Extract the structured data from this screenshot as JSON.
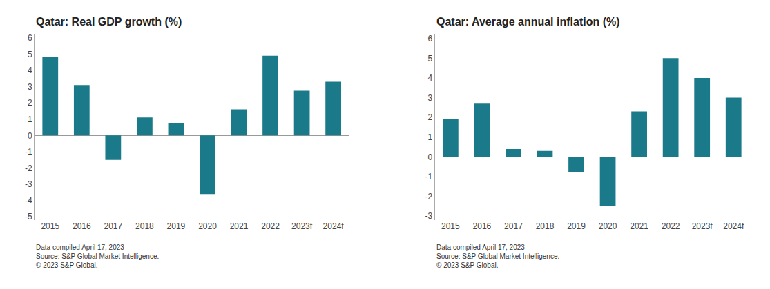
{
  "chart_data": [
    {
      "type": "bar",
      "title": "Qatar: Real GDP growth (%)",
      "categories": [
        "2015",
        "2016",
        "2017",
        "2018",
        "2019",
        "2020",
        "2021",
        "2022",
        "2023f",
        "2024f"
      ],
      "values": [
        4.8,
        3.1,
        -1.5,
        1.1,
        0.75,
        -3.6,
        1.6,
        4.9,
        2.75,
        3.3
      ],
      "color": "#1a7a8a",
      "ylim": [
        -5.2,
        6.2
      ],
      "yticks": [
        -5,
        -4,
        -3,
        -2,
        -1,
        0,
        1,
        2,
        3,
        4,
        5,
        6
      ],
      "grid": false,
      "annotations": [
        "Data compiled April 17, 2023",
        "Source: S&P Global Market Intelligence.",
        "© 2023 S&P Global."
      ]
    },
    {
      "type": "bar",
      "title": "Qatar: Average annual inflation (%)",
      "categories": [
        "2015",
        "2016",
        "2017",
        "2018",
        "2019",
        "2020",
        "2021",
        "2022",
        "2023f",
        "2024f"
      ],
      "values": [
        1.9,
        2.7,
        0.4,
        0.3,
        -0.75,
        -2.5,
        2.3,
        5.0,
        4.0,
        3.0
      ],
      "color": "#1a7a8a",
      "ylim": [
        -3.2,
        6.2
      ],
      "yticks": [
        -3,
        -2,
        -1,
        0,
        1,
        2,
        3,
        4,
        5,
        6
      ],
      "grid": false,
      "annotations": [
        "Data compiled April 17, 2023",
        "Source: S&P Global Market Intelligence.",
        "© 2023 S&P Global."
      ]
    }
  ]
}
